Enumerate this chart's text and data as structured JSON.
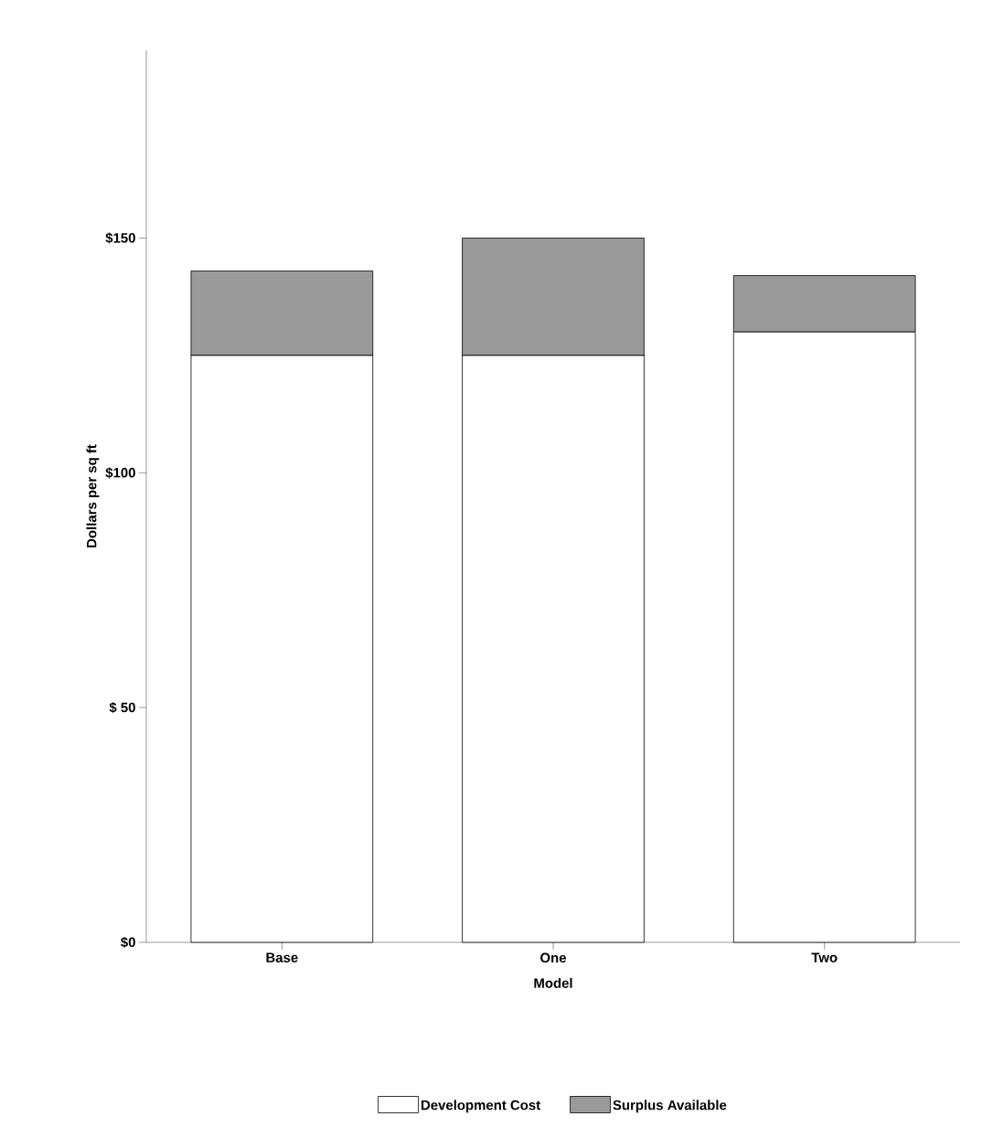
{
  "chart_data": {
    "type": "bar",
    "stacked": true,
    "xlabel": "Model",
    "ylabel": "Dollars per sq ft",
    "categories": [
      "Base",
      "One",
      "Two"
    ],
    "series": [
      {
        "name": "Development Cost",
        "color": "#ffffff",
        "values": [
          125,
          125,
          130
        ]
      },
      {
        "name": "Surplus Available",
        "color": "#9a9a9a",
        "values": [
          18,
          25,
          12
        ]
      }
    ],
    "ylim": [
      0,
      190
    ],
    "yticks": [
      {
        "value": 0,
        "label": "$0"
      },
      {
        "value": 50,
        "label": "$ 50"
      },
      {
        "value": 100,
        "label": "$100"
      },
      {
        "value": 150,
        "label": "$150"
      }
    ],
    "grid": false,
    "legend": "bottom"
  }
}
